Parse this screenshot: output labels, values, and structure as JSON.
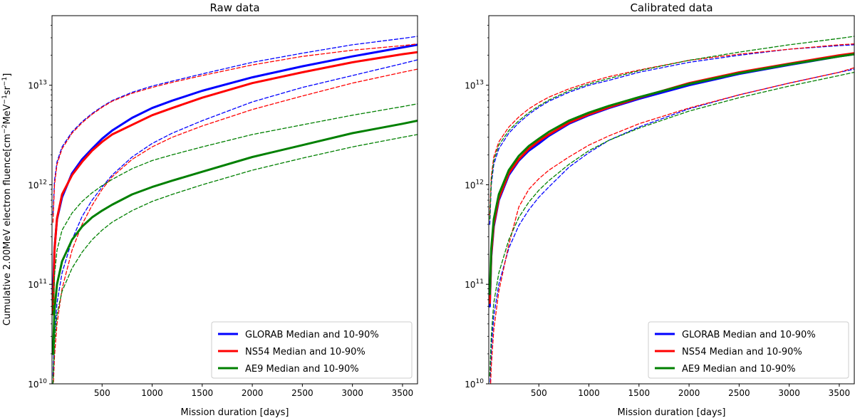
{
  "chart_data": [
    {
      "type": "line",
      "title": "Raw data",
      "xlabel": "Mission duration [days]",
      "ylabel": "Cumulative 2.00MeV electron fluence[cm$^{-2}$MeV$^{-1}$sr$^{-1}$]",
      "ylabel_parts": {
        "pre": "Cumulative 2.00MeV electron fluence[cm",
        "e1": "−2",
        "mid": "MeV",
        "e2": "−1",
        "mid2": "sr",
        "e3": "−1",
        "post": "]"
      },
      "xlim": [
        0,
        3650
      ],
      "ylim": [
        10000000000.0,
        50000000000000.0
      ],
      "yscale": "log",
      "xticks": [
        500,
        1000,
        1500,
        2000,
        2500,
        3000,
        3500
      ],
      "yticks": [
        {
          "base": "10",
          "exp": "10",
          "value": 10000000000.0
        },
        {
          "base": "10",
          "exp": "11",
          "value": 100000000000.0
        },
        {
          "base": "10",
          "exp": "12",
          "value": 1000000000000.0
        },
        {
          "base": "10",
          "exp": "13",
          "value": 10000000000000.0
        }
      ],
      "grid": false,
      "legend_position": "lower-right",
      "legend": [
        "GLORAB Median and 10-90%",
        "NS54 Median and 10-90%",
        "AE9 Median and 10-90%"
      ],
      "x": [
        10,
        25,
        50,
        100,
        200,
        300,
        400,
        500,
        600,
        800,
        1000,
        1200,
        1500,
        2000,
        2500,
        3000,
        3500,
        3650
      ],
      "series": [
        {
          "name": "GLORAB Median and 10-90%",
          "color": "#0000ff",
          "style": "solid",
          "width": 3,
          "values": [
            80000000000.0,
            230000000000.0,
            450000000000.0,
            750000000000.0,
            1300000000000.0,
            1800000000000.0,
            2300000000000.0,
            2900000000000.0,
            3500000000000.0,
            4700000000000.0,
            5900000000000.0,
            7000000000000.0,
            8800000000000.0,
            12000000000000.0,
            15500000000000.0,
            19500000000000.0,
            24000000000000.0,
            25500000000000.0
          ]
        },
        {
          "name": "",
          "color": "#0000ff",
          "style": "dashed",
          "width": 1.3,
          "values": [
            500000000000.0,
            1100000000000.0,
            1700000000000.0,
            2400000000000.0,
            3400000000000.0,
            4300000000000.0,
            5200000000000.0,
            6100000000000.0,
            7000000000000.0,
            8500000000000.0,
            9800000000000.0,
            11000000000000.0,
            13000000000000.0,
            17000000000000.0,
            21000000000000.0,
            25500000000000.0,
            29500000000000.0,
            31000000000000.0
          ]
        },
        {
          "name": "",
          "color": "#0000ff",
          "style": "dashed",
          "width": 1.3,
          "values": [
            12000000000.0,
            32000000000.0,
            65000000000.0,
            130000000000.0,
            280000000000.0,
            480000000000.0,
            700000000000.0,
            950000000000.0,
            1250000000000.0,
            1900000000000.0,
            2600000000000.0,
            3300000000000.0,
            4400000000000.0,
            6800000000000.0,
            9500000000000.0,
            12500000000000.0,
            16500000000000.0,
            18000000000000.0
          ]
        },
        {
          "name": "NS54 Median and 10-90%",
          "color": "#ff0000",
          "style": "solid",
          "width": 3,
          "values": [
            50000000000.0,
            220000000000.0,
            460000000000.0,
            800000000000.0,
            1250000000000.0,
            1700000000000.0,
            2200000000000.0,
            2700000000000.0,
            3200000000000.0,
            4000000000000.0,
            5000000000000.0,
            5900000000000.0,
            7500000000000.0,
            10500000000000.0,
            13500000000000.0,
            17000000000000.0,
            20500000000000.0,
            21500000000000.0
          ]
        },
        {
          "name": "",
          "color": "#ff0000",
          "style": "dashed",
          "width": 1.3,
          "values": [
            420000000000.0,
            1000000000000.0,
            1600000000000.0,
            2300000000000.0,
            3300000000000.0,
            4200000000000.0,
            5100000000000.0,
            6000000000000.0,
            6900000000000.0,
            8300000000000.0,
            9500000000000.0,
            10700000000000.0,
            12500000000000.0,
            16000000000000.0,
            19500000000000.0,
            22500000000000.0,
            25000000000000.0,
            26000000000000.0
          ]
        },
        {
          "name": "",
          "color": "#ff0000",
          "style": "dashed",
          "width": 1.3,
          "values": [
            8000000000.0,
            19000000000.0,
            40000000000.0,
            90000000000.0,
            220000000000.0,
            400000000000.0,
            620000000000.0,
            900000000000.0,
            1200000000000.0,
            1800000000000.0,
            2400000000000.0,
            3000000000000.0,
            3900000000000.0,
            5700000000000.0,
            7800000000000.0,
            10500000000000.0,
            13500000000000.0,
            14500000000000.0
          ]
        },
        {
          "name": "AE9 Median and 10-90%",
          "color": "#008000",
          "style": "solid",
          "width": 3,
          "values": [
            20000000000.0,
            55000000000.0,
            100000000000.0,
            170000000000.0,
            280000000000.0,
            380000000000.0,
            470000000000.0,
            550000000000.0,
            630000000000.0,
            800000000000.0,
            950000000000.0,
            1100000000000.0,
            1350000000000.0,
            1900000000000.0,
            2500000000000.0,
            3300000000000.0,
            4100000000000.0,
            4400000000000.0
          ]
        },
        {
          "name": "",
          "color": "#008000",
          "style": "dashed",
          "width": 1.3,
          "values": [
            50000000000.0,
            125000000000.0,
            220000000000.0,
            350000000000.0,
            520000000000.0,
            680000000000.0,
            830000000000.0,
            980000000000.0,
            1130000000000.0,
            1450000000000.0,
            1750000000000.0,
            2000000000000.0,
            2400000000000.0,
            3200000000000.0,
            4000000000000.0,
            5000000000000.0,
            6100000000000.0,
            6500000000000.0
          ]
        },
        {
          "name": "",
          "color": "#008000",
          "style": "dashed",
          "width": 1.3,
          "values": [
            10000000000.0,
            26000000000.0,
            50000000000.0,
            85000000000.0,
            145000000000.0,
            210000000000.0,
            280000000000.0,
            350000000000.0,
            420000000000.0,
            550000000000.0,
            680000000000.0,
            800000000000.0,
            1000000000000.0,
            1400000000000.0,
            1850000000000.0,
            2400000000000.0,
            3000000000000.0,
            3200000000000.0
          ]
        }
      ]
    },
    {
      "type": "line",
      "title": "Calibrated data",
      "xlabel": "Mission duration [days]",
      "xlim": [
        0,
        3650
      ],
      "ylim": [
        10000000000.0,
        50000000000000.0
      ],
      "yscale": "log",
      "xticks": [
        500,
        1000,
        1500,
        2000,
        2500,
        3000,
        3500
      ],
      "yticks": [
        {
          "base": "10",
          "exp": "10",
          "value": 10000000000.0
        },
        {
          "base": "10",
          "exp": "11",
          "value": 100000000000.0
        },
        {
          "base": "10",
          "exp": "12",
          "value": 1000000000000.0
        },
        {
          "base": "10",
          "exp": "13",
          "value": 10000000000000.0
        }
      ],
      "grid": false,
      "legend_position": "lower-right",
      "legend": [
        "GLORAB Median and 10-90%",
        "NS54 Median and 10-90%",
        "AE9 Median and 10-90%"
      ],
      "x": [
        10,
        25,
        50,
        100,
        200,
        300,
        400,
        500,
        600,
        800,
        1000,
        1200,
        1500,
        2000,
        2500,
        3000,
        3500,
        3650
      ],
      "series": [
        {
          "name": "GLORAB Median and 10-90%",
          "color": "#0000ff",
          "style": "solid",
          "width": 3,
          "values": [
            60000000000.0,
            190000000000.0,
            380000000000.0,
            700000000000.0,
            1250000000000.0,
            1750000000000.0,
            2200000000000.0,
            2600000000000.0,
            3100000000000.0,
            4100000000000.0,
            5000000000000.0,
            5900000000000.0,
            7300000000000.0,
            10000000000000.0,
            13000000000000.0,
            16000000000000.0,
            19500000000000.0,
            20500000000000.0
          ]
        },
        {
          "name": "",
          "color": "#0000ff",
          "style": "dashed",
          "width": 1.3,
          "values": [
            400000000000.0,
            1000000000000.0,
            1600000000000.0,
            2300000000000.0,
            3300000000000.0,
            4200000000000.0,
            5100000000000.0,
            6000000000000.0,
            6900000000000.0,
            8500000000000.0,
            10000000000000.0,
            11200000000000.0,
            13500000000000.0,
            17000000000000.0,
            20000000000000.0,
            23000000000000.0,
            25000000000000.0,
            25500000000000.0
          ]
        },
        {
          "name": "",
          "color": "#0000ff",
          "style": "dashed",
          "width": 1.3,
          "values": [
            8000000000.0,
            22000000000.0,
            48000000000.0,
            100000000000.0,
            230000000000.0,
            390000000000.0,
            560000000000.0,
            750000000000.0,
            950000000000.0,
            1500000000000.0,
            2100000000000.0,
            2800000000000.0,
            3800000000000.0,
            5800000000000.0,
            8000000000000.0,
            10500000000000.0,
            13500000000000.0,
            14500000000000.0
          ]
        },
        {
          "name": "NS54 Median and 10-90%",
          "color": "#ff0000",
          "style": "solid",
          "width": 3,
          "values": [
            65000000000.0,
            200000000000.0,
            400000000000.0,
            730000000000.0,
            1300000000000.0,
            1800000000000.0,
            2300000000000.0,
            2750000000000.0,
            3200000000000.0,
            4200000000000.0,
            5100000000000.0,
            6000000000000.0,
            7500000000000.0,
            10500000000000.0,
            13500000000000.0,
            16500000000000.0,
            20000000000000.0,
            21000000000000.0
          ]
        },
        {
          "name": "",
          "color": "#ff0000",
          "style": "dashed",
          "width": 1.3,
          "values": [
            500000000000.0,
            1200000000000.0,
            1900000000000.0,
            2700000000000.0,
            3800000000000.0,
            4800000000000.0,
            5800000000000.0,
            6700000000000.0,
            7600000000000.0,
            9200000000000.0,
            10700000000000.0,
            12200000000000.0,
            14200000000000.0,
            17800000000000.0,
            20500000000000.0,
            23000000000000.0,
            25500000000000.0,
            26000000000000.0
          ]
        },
        {
          "name": "",
          "color": "#ff0000",
          "style": "dashed",
          "width": 1.3,
          "values": [
            6000000000.0,
            15000000000.0,
            35000000000.0,
            85000000000.0,
            250000000000.0,
            600000000000.0,
            900000000000.0,
            1150000000000.0,
            1400000000000.0,
            1900000000000.0,
            2500000000000.0,
            3100000000000.0,
            4100000000000.0,
            5900000000000.0,
            8000000000000.0,
            10500000000000.0,
            13500000000000.0,
            15000000000000.0
          ]
        },
        {
          "name": "AE9 Median and 10-90%",
          "color": "#008000",
          "style": "solid",
          "width": 3,
          "values": [
            80000000000.0,
            230000000000.0,
            450000000000.0,
            800000000000.0,
            1400000000000.0,
            1950000000000.0,
            2450000000000.0,
            2900000000000.0,
            3400000000000.0,
            4400000000000.0,
            5300000000000.0,
            6200000000000.0,
            7600000000000.0,
            10300000000000.0,
            13200000000000.0,
            16200000000000.0,
            19500000000000.0,
            20500000000000.0
          ]
        },
        {
          "name": "",
          "color": "#008000",
          "style": "dashed",
          "width": 1.3,
          "values": [
            450000000000.0,
            1100000000000.0,
            1750000000000.0,
            2500000000000.0,
            3500000000000.0,
            4400000000000.0,
            5300000000000.0,
            6200000000000.0,
            7100000000000.0,
            8800000000000.0,
            10300000000000.0,
            11700000000000.0,
            14000000000000.0,
            17800000000000.0,
            21500000000000.0,
            25500000000000.0,
            29500000000000.0,
            31000000000000.0
          ]
        },
        {
          "name": "",
          "color": "#008000",
          "style": "dashed",
          "width": 1.3,
          "values": [
            12000000000.0,
            30000000000.0,
            65000000000.0,
            130000000000.0,
            280000000000.0,
            470000000000.0,
            670000000000.0,
            880000000000.0,
            1100000000000.0,
            1600000000000.0,
            2200000000000.0,
            2800000000000.0,
            3700000000000.0,
            5500000000000.0,
            7500000000000.0,
            9800000000000.0,
            12500000000000.0,
            13500000000000.0
          ]
        }
      ]
    }
  ]
}
